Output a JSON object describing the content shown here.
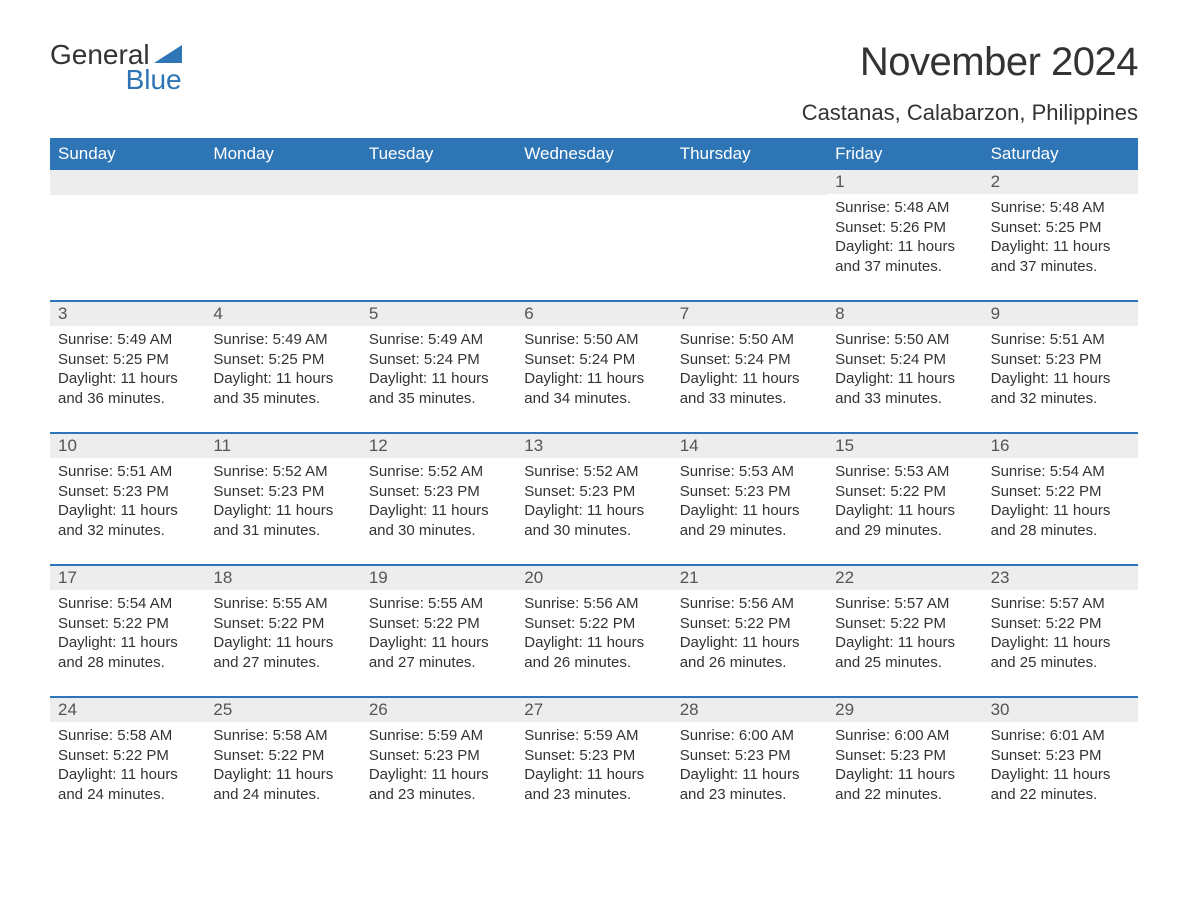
{
  "logo": {
    "text1": "General",
    "text2": "Blue",
    "tri_color": "#2e75b6"
  },
  "title": "November 2024",
  "location": "Castanas, Calabarzon, Philippines",
  "colors": {
    "header_bg": "#2e75b6",
    "header_fg": "#ffffff",
    "daynum_bg": "#ededed",
    "daynum_fg": "#555555",
    "text": "#333333",
    "rule": "#2e75b6",
    "page_bg": "#ffffff"
  },
  "typography": {
    "title_fontsize": 40,
    "location_fontsize": 22,
    "dayhead_fontsize": 17,
    "daynum_fontsize": 17,
    "body_fontsize": 15
  },
  "layout": {
    "columns": 7,
    "rows": 5,
    "leading_blanks": 5
  },
  "day_headers": [
    "Sunday",
    "Monday",
    "Tuesday",
    "Wednesday",
    "Thursday",
    "Friday",
    "Saturday"
  ],
  "labels": {
    "sunrise": "Sunrise",
    "sunset": "Sunset",
    "daylight": "Daylight"
  },
  "days": [
    {
      "n": 1,
      "sunrise": "5:48 AM",
      "sunset": "5:26 PM",
      "daylight": "11 hours and 37 minutes."
    },
    {
      "n": 2,
      "sunrise": "5:48 AM",
      "sunset": "5:25 PM",
      "daylight": "11 hours and 37 minutes."
    },
    {
      "n": 3,
      "sunrise": "5:49 AM",
      "sunset": "5:25 PM",
      "daylight": "11 hours and 36 minutes."
    },
    {
      "n": 4,
      "sunrise": "5:49 AM",
      "sunset": "5:25 PM",
      "daylight": "11 hours and 35 minutes."
    },
    {
      "n": 5,
      "sunrise": "5:49 AM",
      "sunset": "5:24 PM",
      "daylight": "11 hours and 35 minutes."
    },
    {
      "n": 6,
      "sunrise": "5:50 AM",
      "sunset": "5:24 PM",
      "daylight": "11 hours and 34 minutes."
    },
    {
      "n": 7,
      "sunrise": "5:50 AM",
      "sunset": "5:24 PM",
      "daylight": "11 hours and 33 minutes."
    },
    {
      "n": 8,
      "sunrise": "5:50 AM",
      "sunset": "5:24 PM",
      "daylight": "11 hours and 33 minutes."
    },
    {
      "n": 9,
      "sunrise": "5:51 AM",
      "sunset": "5:23 PM",
      "daylight": "11 hours and 32 minutes."
    },
    {
      "n": 10,
      "sunrise": "5:51 AM",
      "sunset": "5:23 PM",
      "daylight": "11 hours and 32 minutes."
    },
    {
      "n": 11,
      "sunrise": "5:52 AM",
      "sunset": "5:23 PM",
      "daylight": "11 hours and 31 minutes."
    },
    {
      "n": 12,
      "sunrise": "5:52 AM",
      "sunset": "5:23 PM",
      "daylight": "11 hours and 30 minutes."
    },
    {
      "n": 13,
      "sunrise": "5:52 AM",
      "sunset": "5:23 PM",
      "daylight": "11 hours and 30 minutes."
    },
    {
      "n": 14,
      "sunrise": "5:53 AM",
      "sunset": "5:23 PM",
      "daylight": "11 hours and 29 minutes."
    },
    {
      "n": 15,
      "sunrise": "5:53 AM",
      "sunset": "5:22 PM",
      "daylight": "11 hours and 29 minutes."
    },
    {
      "n": 16,
      "sunrise": "5:54 AM",
      "sunset": "5:22 PM",
      "daylight": "11 hours and 28 minutes."
    },
    {
      "n": 17,
      "sunrise": "5:54 AM",
      "sunset": "5:22 PM",
      "daylight": "11 hours and 28 minutes."
    },
    {
      "n": 18,
      "sunrise": "5:55 AM",
      "sunset": "5:22 PM",
      "daylight": "11 hours and 27 minutes."
    },
    {
      "n": 19,
      "sunrise": "5:55 AM",
      "sunset": "5:22 PM",
      "daylight": "11 hours and 27 minutes."
    },
    {
      "n": 20,
      "sunrise": "5:56 AM",
      "sunset": "5:22 PM",
      "daylight": "11 hours and 26 minutes."
    },
    {
      "n": 21,
      "sunrise": "5:56 AM",
      "sunset": "5:22 PM",
      "daylight": "11 hours and 26 minutes."
    },
    {
      "n": 22,
      "sunrise": "5:57 AM",
      "sunset": "5:22 PM",
      "daylight": "11 hours and 25 minutes."
    },
    {
      "n": 23,
      "sunrise": "5:57 AM",
      "sunset": "5:22 PM",
      "daylight": "11 hours and 25 minutes."
    },
    {
      "n": 24,
      "sunrise": "5:58 AM",
      "sunset": "5:22 PM",
      "daylight": "11 hours and 24 minutes."
    },
    {
      "n": 25,
      "sunrise": "5:58 AM",
      "sunset": "5:22 PM",
      "daylight": "11 hours and 24 minutes."
    },
    {
      "n": 26,
      "sunrise": "5:59 AM",
      "sunset": "5:23 PM",
      "daylight": "11 hours and 23 minutes."
    },
    {
      "n": 27,
      "sunrise": "5:59 AM",
      "sunset": "5:23 PM",
      "daylight": "11 hours and 23 minutes."
    },
    {
      "n": 28,
      "sunrise": "6:00 AM",
      "sunset": "5:23 PM",
      "daylight": "11 hours and 23 minutes."
    },
    {
      "n": 29,
      "sunrise": "6:00 AM",
      "sunset": "5:23 PM",
      "daylight": "11 hours and 22 minutes."
    },
    {
      "n": 30,
      "sunrise": "6:01 AM",
      "sunset": "5:23 PM",
      "daylight": "11 hours and 22 minutes."
    }
  ]
}
